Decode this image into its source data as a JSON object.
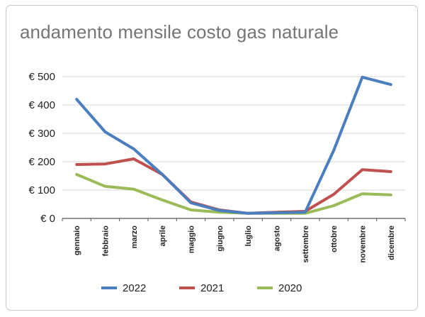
{
  "chart_data": {
    "type": "line",
    "title": "andamento mensile costo gas naturale",
    "xlabel": "",
    "ylabel": "",
    "categories": [
      "gennaio",
      "febbraio",
      "marzo",
      "aprile",
      "maggio",
      "giugno",
      "luglio",
      "agosto",
      "settembre",
      "ottobre",
      "novembre",
      "dicembre"
    ],
    "yticks": [
      "€ 0",
      "€ 100",
      "€ 200",
      "€ 300",
      "€ 400",
      "€ 500"
    ],
    "ylim": [
      0,
      500
    ],
    "grid": true,
    "legend_position": "bottom",
    "series": [
      {
        "name": "2022",
        "color": "#4a7ebf",
        "values": [
          420,
          305,
          245,
          155,
          55,
          28,
          18,
          20,
          22,
          240,
          498,
          472
        ]
      },
      {
        "name": "2021",
        "color": "#c0504d",
        "values": [
          190,
          192,
          210,
          155,
          58,
          30,
          18,
          22,
          25,
          85,
          172,
          165
        ]
      },
      {
        "name": "2020",
        "color": "#9bbb59",
        "values": [
          155,
          113,
          103,
          65,
          30,
          22,
          18,
          18,
          18,
          45,
          87,
          83
        ]
      }
    ]
  }
}
